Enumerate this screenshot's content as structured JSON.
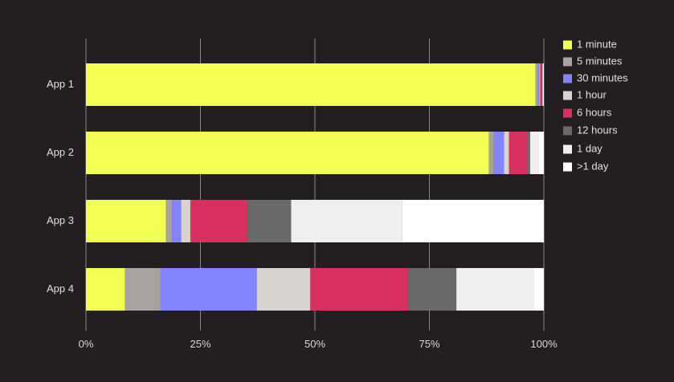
{
  "chart_data": {
    "type": "bar",
    "orientation": "horizontal",
    "stacked": true,
    "normalized": true,
    "categories": [
      "App 1",
      "App 2",
      "App 3",
      "App 4"
    ],
    "series": [
      {
        "name": "1 minute",
        "color": "#f2ff52",
        "values": [
          98.2,
          88.0,
          17.5,
          8.5
        ]
      },
      {
        "name": "5 minutes",
        "color": "#a8a39e",
        "values": [
          0.4,
          1.1,
          1.3,
          7.8
        ]
      },
      {
        "name": "30 minutes",
        "color": "#8285ff",
        "values": [
          0.4,
          2.2,
          2.0,
          21.0
        ]
      },
      {
        "name": "1 hour",
        "color": "#d8d3d0",
        "values": [
          0.2,
          1.1,
          2.0,
          11.7
        ]
      },
      {
        "name": "6 hours",
        "color": "#d93060",
        "values": [
          0.4,
          4.0,
          12.5,
          21.4
        ]
      },
      {
        "name": "12 hours",
        "color": "#6a6a6a",
        "values": [
          0.1,
          0.6,
          9.5,
          10.5
        ]
      },
      {
        "name": "1 day",
        "color": "#efefef",
        "values": [
          0.2,
          1.8,
          24.2,
          16.9
        ]
      },
      {
        "name": ">1 day",
        "color": "#ffffff",
        "values": [
          0.1,
          1.2,
          31.0,
          2.2
        ]
      }
    ],
    "xlim": [
      0,
      100
    ],
    "xticks": [
      "0%",
      "25%",
      "50%",
      "75%",
      "100%"
    ],
    "xtick_values": [
      0,
      25,
      50,
      75,
      100
    ],
    "grid": "vertical",
    "legend": "right"
  }
}
